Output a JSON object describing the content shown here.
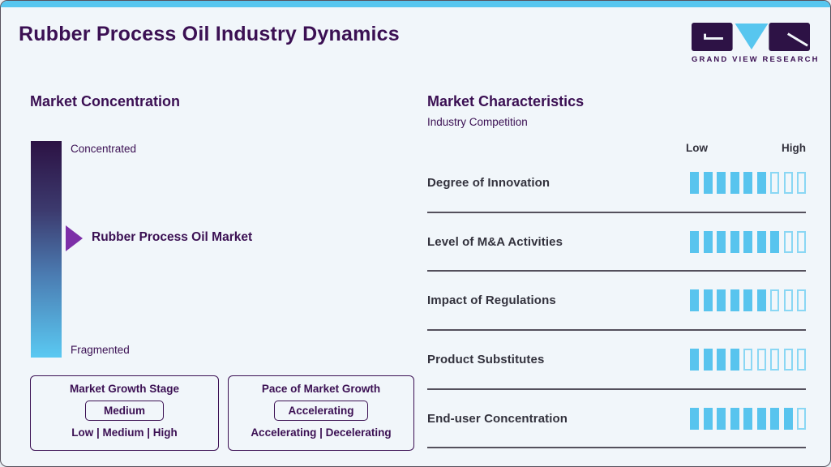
{
  "page": {
    "title": "Rubber Process Oil Industry Dynamics",
    "brand": "GRAND VIEW RESEARCH"
  },
  "colors": {
    "accent_cyan": "#57c6ef",
    "heading_purple": "#3b1053",
    "label_slate": "#33323d",
    "arrow_purple": "#7d2fa8",
    "gradient_top": "#2c1244",
    "gradient_bottom": "#5ac9f2",
    "segment_filled": "#58c4ee",
    "segment_empty_border": "#8ad7f4",
    "background": "#f1f6fa"
  },
  "concentration": {
    "heading": "Market Concentration",
    "top_label": "Concentrated",
    "bottom_label": "Fragmented",
    "marker_label": "Rubber Process Oil Market"
  },
  "growth_stage": {
    "title": "Market Growth Stage",
    "selected": "Medium",
    "options": "Low | Medium | High"
  },
  "pace": {
    "title": "Pace of Market Growth",
    "selected": "Accelerating",
    "options": "Accelerating | Decelerating"
  },
  "characteristics": {
    "heading": "Market Characteristics",
    "subheading": "Industry Competition",
    "low_label": "Low",
    "high_label": "High",
    "rows": [
      {
        "label": "Degree of Innovation",
        "filled": 6,
        "total": 9
      },
      {
        "label": "Level of M&A Activities",
        "filled": 7,
        "total": 9
      },
      {
        "label": "Impact of Regulations",
        "filled": 6,
        "total": 9
      },
      {
        "label": "Product Substitutes",
        "filled": 4,
        "total": 9
      },
      {
        "label": "End-user Concentration",
        "filled": 8,
        "total": 9
      }
    ]
  },
  "chart_data": {
    "type": "bar",
    "title": "Market Characteristics",
    "subtitle": "Industry Competition",
    "categories": [
      "Degree of Innovation",
      "Level of M&A Activities",
      "Impact of Regulations",
      "Product Substitutes",
      "End-user Concentration"
    ],
    "values": [
      6,
      7,
      6,
      4,
      8
    ],
    "scale_max": 9,
    "scale_labels": [
      "Low",
      "High"
    ],
    "legend_position": "none",
    "concentration_scale": {
      "type": "gradient-scale",
      "ends": [
        "Concentrated",
        "Fragmented"
      ],
      "marker": "Rubber Process Oil Market",
      "marker_position_fraction": 0.45
    },
    "annotations": {
      "market_growth_stage": "Medium",
      "market_growth_stage_options": [
        "Low",
        "Medium",
        "High"
      ],
      "pace_of_market_growth": "Accelerating",
      "pace_options": [
        "Accelerating",
        "Decelerating"
      ]
    }
  }
}
